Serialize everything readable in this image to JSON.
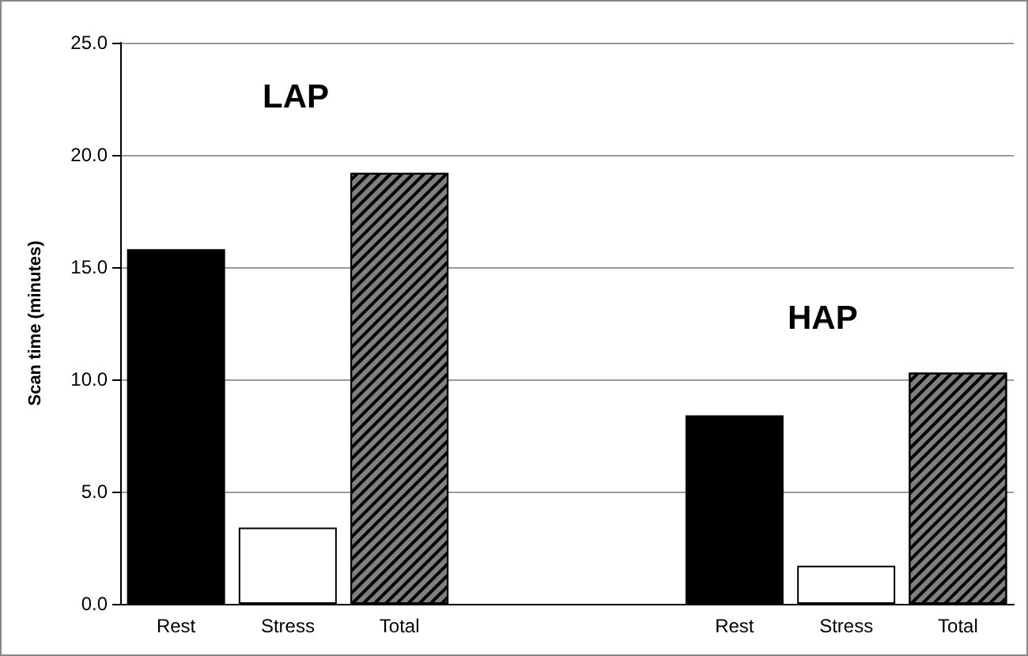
{
  "chart_data": {
    "type": "bar",
    "ylabel": "Scan time (minutes)",
    "categories": [
      "Rest",
      "Stress",
      "Total",
      null,
      null,
      "Rest",
      "Stress",
      "Total"
    ],
    "values": [
      15.8,
      3.4,
      19.2,
      null,
      null,
      8.4,
      1.7,
      10.3
    ],
    "colors": [
      "#000000",
      "#ffffff",
      "#808080",
      null,
      null,
      "#000000",
      "#ffffff",
      "#808080"
    ],
    "ylim": [
      0,
      25
    ],
    "yticks": [
      {
        "value": 0,
        "label": "0.0"
      },
      {
        "value": 5,
        "label": "5.0"
      },
      {
        "value": 10,
        "label": "10.0"
      },
      {
        "value": 15,
        "label": "15.0"
      },
      {
        "value": 20,
        "label": "20.0"
      },
      {
        "value": 25,
        "label": "25.0"
      }
    ],
    "grid": "y",
    "annotations": [
      "LAP",
      "HAP"
    ]
  }
}
